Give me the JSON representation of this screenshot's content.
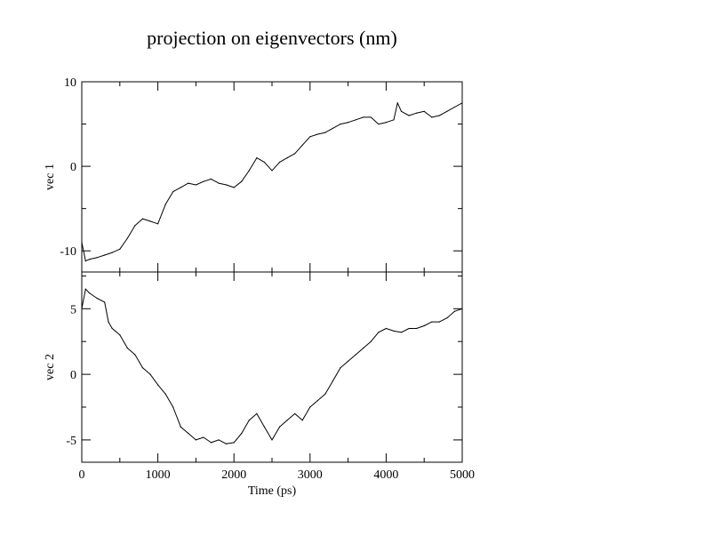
{
  "chart_data": {
    "type": "line",
    "title": "projection on eigenvectors (nm)",
    "xlabel": "Time (ps)",
    "xlim": [
      0,
      5000
    ],
    "xticks": [
      "0",
      "1000",
      "2000",
      "3000",
      "4000",
      "5000"
    ],
    "grid": false,
    "panels": [
      {
        "ylabel": "vec 1",
        "ylim": [
          -12.5,
          10
        ],
        "yticks": [
          "-10",
          "0",
          "10"
        ],
        "series": [
          {
            "x": [
              0,
              50,
              100,
              200,
              300,
              400,
              500,
              600,
              700,
              800,
              900,
              1000,
              1100,
              1200,
              1300,
              1400,
              1500,
              1600,
              1700,
              1800,
              1900,
              2000,
              2100,
              2200,
              2300,
              2400,
              2500,
              2600,
              2700,
              2800,
              2900,
              3000,
              3100,
              3200,
              3300,
              3400,
              3500,
              3600,
              3700,
              3800,
              3900,
              4000,
              4100,
              4150,
              4200,
              4300,
              4400,
              4500,
              4600,
              4700,
              4800,
              4900,
              5000
            ],
            "values": [
              -9.0,
              -11.2,
              -11.0,
              -10.8,
              -10.5,
              -10.2,
              -9.8,
              -8.5,
              -7.0,
              -6.2,
              -6.5,
              -6.8,
              -4.5,
              -3.0,
              -2.5,
              -2.0,
              -2.2,
              -1.8,
              -1.5,
              -2.0,
              -2.2,
              -2.5,
              -1.8,
              -0.5,
              1.0,
              0.5,
              -0.5,
              0.5,
              1.0,
              1.5,
              2.5,
              3.5,
              3.8,
              4.0,
              4.5,
              5.0,
              5.2,
              5.5,
              5.8,
              5.8,
              5.0,
              5.2,
              5.5,
              7.5,
              6.5,
              6.0,
              6.3,
              6.5,
              5.8,
              6.0,
              6.5,
              7.0,
              7.5
            ]
          }
        ]
      },
      {
        "ylabel": "vec 2",
        "ylim": [
          -6.7,
          7.8
        ],
        "yticks": [
          "-5",
          "0",
          "5"
        ],
        "series": [
          {
            "x": [
              0,
              50,
              100,
              200,
              300,
              350,
              400,
              500,
              600,
              700,
              800,
              900,
              1000,
              1100,
              1200,
              1300,
              1400,
              1500,
              1600,
              1700,
              1800,
              1900,
              2000,
              2100,
              2200,
              2300,
              2400,
              2500,
              2600,
              2700,
              2800,
              2900,
              3000,
              3100,
              3200,
              3300,
              3400,
              3500,
              3600,
              3700,
              3800,
              3900,
              4000,
              4100,
              4200,
              4300,
              4400,
              4500,
              4600,
              4700,
              4800,
              4900,
              5000
            ],
            "values": [
              5.0,
              6.5,
              6.2,
              5.8,
              5.5,
              4.0,
              3.5,
              3.0,
              2.0,
              1.5,
              0.5,
              0.0,
              -0.8,
              -1.5,
              -2.5,
              -4.0,
              -4.5,
              -5.0,
              -4.8,
              -5.2,
              -5.0,
              -5.3,
              -5.2,
              -4.5,
              -3.5,
              -3.0,
              -4.0,
              -5.0,
              -4.0,
              -3.5,
              -3.0,
              -3.5,
              -2.5,
              -2.0,
              -1.5,
              -0.5,
              0.5,
              1.0,
              1.5,
              2.0,
              2.5,
              3.2,
              3.5,
              3.3,
              3.2,
              3.5,
              3.5,
              3.7,
              4.0,
              4.0,
              4.3,
              4.8,
              5.0
            ]
          }
        ]
      }
    ]
  }
}
